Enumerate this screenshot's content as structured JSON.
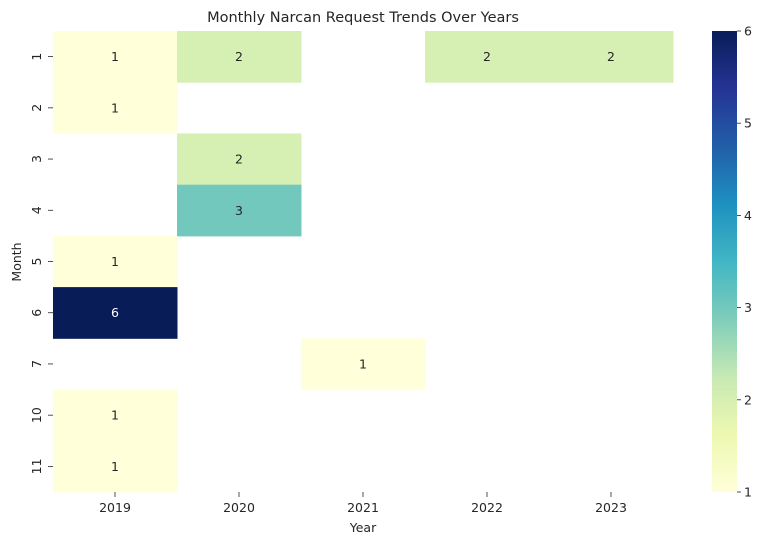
{
  "chart_data": {
    "type": "heatmap",
    "title": "Monthly Narcan Request Trends Over Years",
    "xlabel": "Year",
    "ylabel": "Month",
    "x": [
      "2019",
      "2020",
      "2021",
      "2022",
      "2023"
    ],
    "y": [
      "1",
      "2",
      "3",
      "4",
      "5",
      "6",
      "7",
      "10",
      "11"
    ],
    "values": [
      [
        1,
        2,
        null,
        2,
        2
      ],
      [
        1,
        null,
        null,
        null,
        null
      ],
      [
        null,
        2,
        null,
        null,
        null
      ],
      [
        null,
        3,
        null,
        null,
        null
      ],
      [
        1,
        null,
        null,
        null,
        null
      ],
      [
        6,
        null,
        null,
        null,
        null
      ],
      [
        null,
        null,
        1,
        null,
        null
      ],
      [
        1,
        null,
        null,
        null,
        null
      ],
      [
        1,
        null,
        null,
        null,
        null
      ]
    ],
    "colorbar": {
      "colormap": "YlGnBu",
      "range": [
        1,
        6
      ],
      "ticks": [
        "1",
        "2",
        "3",
        "4",
        "5",
        "6"
      ]
    },
    "colors": {
      "colormap_stops": [
        "#ffffd9",
        "#edf8b1",
        "#c7e9b4",
        "#7fcdbb",
        "#41b6c4",
        "#1d91c0",
        "#225ea8",
        "#253494",
        "#081d58"
      ]
    }
  }
}
